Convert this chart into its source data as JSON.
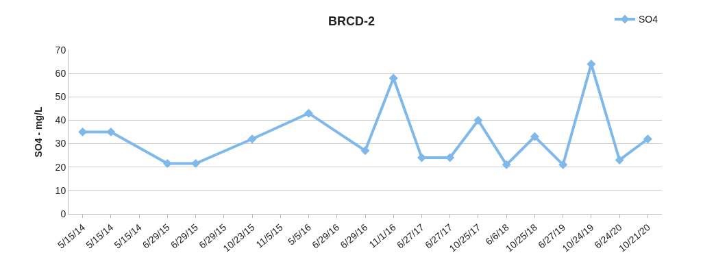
{
  "chart_data": {
    "type": "line",
    "title": "BRCD-2",
    "ylabel": "SO4 - mg/L",
    "categories": [
      "5/15/14",
      "5/15/14",
      "5/15/14",
      "6/29/15",
      "6/29/15",
      "6/29/15",
      "10/23/15",
      "11/5/15",
      "5/5/16",
      "6/29/16",
      "6/29/16",
      "11/1/16",
      "6/27/17",
      "6/27/17",
      "10/25/17",
      "6/6/18",
      "10/25/18",
      "6/27/19",
      "10/24/19",
      "6/24/20",
      "10/21/20"
    ],
    "series": [
      {
        "name": "SO4",
        "color": "#7fb8ea",
        "values": [
          35,
          35,
          null,
          21.5,
          21.5,
          null,
          32,
          null,
          43,
          null,
          27,
          58,
          24,
          24,
          40,
          21,
          33,
          21,
          64,
          23,
          32
        ]
      }
    ],
    "ylim": [
      0,
      70
    ],
    "yticks": [
      0,
      10,
      20,
      30,
      40,
      50,
      60,
      70
    ],
    "grid": "y",
    "legend": "top right",
    "marker": "diamond",
    "line_style": "solid"
  }
}
